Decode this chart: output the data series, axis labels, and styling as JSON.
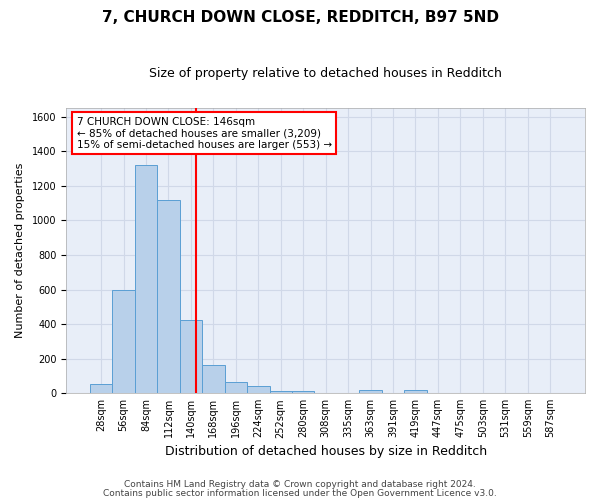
{
  "title": "7, CHURCH DOWN CLOSE, REDDITCH, B97 5ND",
  "subtitle": "Size of property relative to detached houses in Redditch",
  "xlabel": "Distribution of detached houses by size in Redditch",
  "ylabel": "Number of detached properties",
  "footnote1": "Contains HM Land Registry data © Crown copyright and database right 2024.",
  "footnote2": "Contains public sector information licensed under the Open Government Licence v3.0.",
  "bin_labels": [
    "28sqm",
    "56sqm",
    "84sqm",
    "112sqm",
    "140sqm",
    "168sqm",
    "196sqm",
    "224sqm",
    "252sqm",
    "280sqm",
    "308sqm",
    "335sqm",
    "363sqm",
    "391sqm",
    "419sqm",
    "447sqm",
    "475sqm",
    "503sqm",
    "531sqm",
    "559sqm",
    "587sqm"
  ],
  "bar_values": [
    55,
    600,
    1320,
    1120,
    425,
    165,
    65,
    40,
    15,
    10,
    0,
    0,
    20,
    0,
    20,
    0,
    0,
    0,
    0,
    0,
    0
  ],
  "bar_color": "#b8d0ea",
  "bar_edge_color": "#5a9fd4",
  "vline_color": "red",
  "annotation_text": "7 CHURCH DOWN CLOSE: 146sqm\n← 85% of detached houses are smaller (3,209)\n15% of semi-detached houses are larger (553) →",
  "annotation_box_color": "white",
  "annotation_box_edge_color": "red",
  "ylim": [
    0,
    1650
  ],
  "yticks": [
    0,
    200,
    400,
    600,
    800,
    1000,
    1200,
    1400,
    1600
  ],
  "fig_bg_color": "#ffffff",
  "plot_bg_color": "#e8eef8",
  "grid_color": "#d0d8e8",
  "title_fontsize": 11,
  "subtitle_fontsize": 9,
  "xlabel_fontsize": 9,
  "ylabel_fontsize": 8,
  "tick_fontsize": 7,
  "footnote_fontsize": 6.5
}
